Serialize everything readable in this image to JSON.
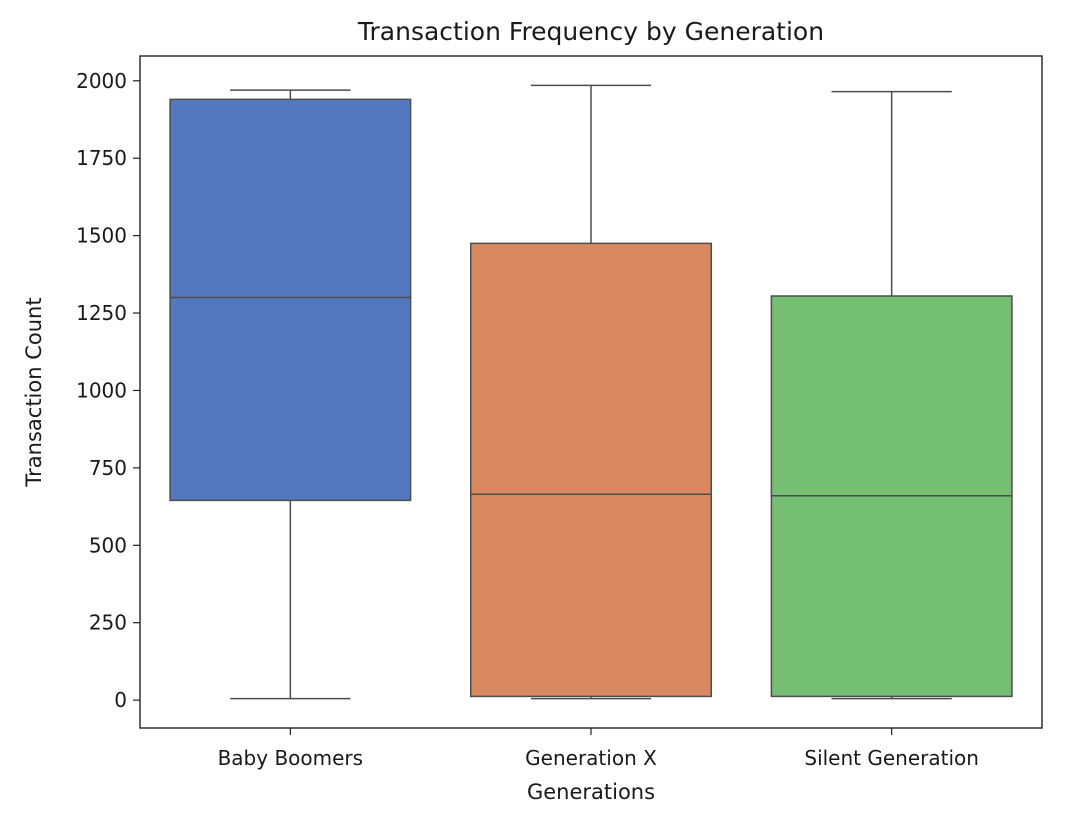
{
  "chart_data": {
    "type": "box",
    "title": "Transaction Frequency by Generation",
    "xlabel": "Generations",
    "ylabel": "Transaction Count",
    "ylim": [
      -90,
      2080
    ],
    "yticks": [
      0,
      250,
      500,
      750,
      1000,
      1250,
      1500,
      1750,
      2000
    ],
    "grid": false,
    "legend": "none",
    "categories": [
      "Baby Boomers",
      "Generation X",
      "Silent Generation"
    ],
    "series": [
      {
        "category": "Baby Boomers",
        "color": "#5478c0",
        "min": 5,
        "q1": 645,
        "median": 1300,
        "q3": 1940,
        "max": 1970
      },
      {
        "category": "Generation X",
        "color": "#d98960",
        "min": 5,
        "q1": 12,
        "median": 665,
        "q3": 1475,
        "max": 1985
      },
      {
        "category": "Silent Generation",
        "color": "#74bf72",
        "min": 5,
        "q1": 12,
        "median": 660,
        "q3": 1305,
        "max": 1965
      }
    ]
  }
}
